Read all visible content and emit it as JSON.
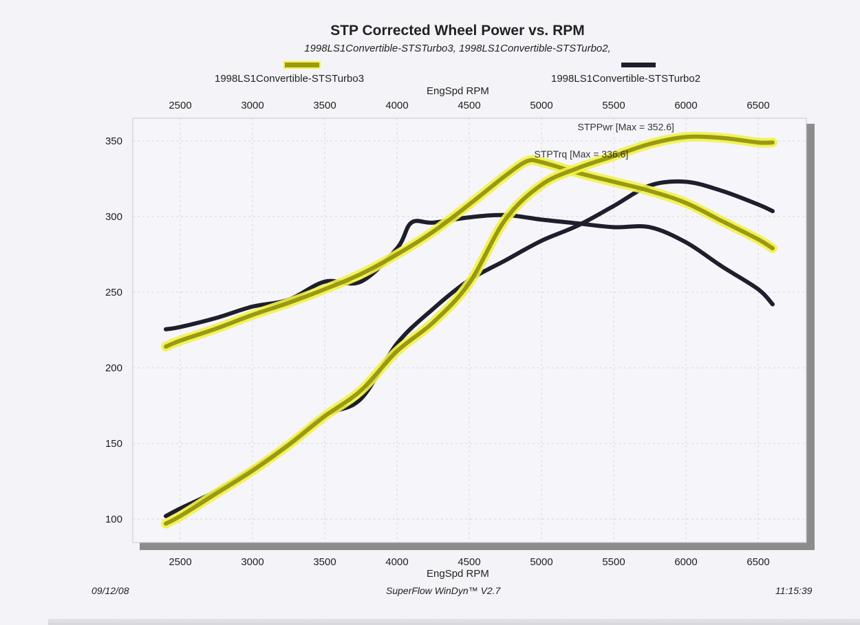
{
  "chart_data": {
    "type": "line",
    "title": "STP Corrected Wheel Power vs. RPM",
    "subtitle": "1998LS1Convertible-STSTurbo3, 1998LS1Convertible-STSTurbo2,",
    "xlabel": "EngSpd  RPM",
    "ylabel": "",
    "xlim": [
      2400,
      6700
    ],
    "ylim": [
      93,
      363
    ],
    "x_ticks": [
      "2500",
      "3000",
      "3500",
      "4000",
      "4500",
      "5000",
      "5500",
      "6000",
      "6500"
    ],
    "x_tick_values": [
      2500,
      3000,
      3500,
      4000,
      4500,
      5000,
      5500,
      6000,
      6500
    ],
    "y_ticks": [
      "100",
      "150",
      "200",
      "250",
      "300",
      "350"
    ],
    "y_tick_values": [
      100,
      150,
      200,
      250,
      300,
      350
    ],
    "grid": true,
    "legend_placement": "top",
    "legend": [
      {
        "name": "1998LS1Convertible-STSTurbo3",
        "color": "#9a9a10",
        "highlight": "#f2f24a"
      },
      {
        "name": "1998LS1Convertible-STSTurbo2",
        "color": "#1e1e2c"
      }
    ],
    "annotations": [
      {
        "text": "STPPwr [Max = 352.6]",
        "x": 5250,
        "y": 357
      },
      {
        "text": "STPTrq [Max = 336.6]",
        "x": 4950,
        "y": 339
      }
    ],
    "series": [
      {
        "name": "Turbo3 STPTrq",
        "run": "1998LS1Convertible-STSTurbo3",
        "color": "#9a9a10",
        "highlight": "#f2f24a",
        "x": [
          2400,
          2500,
          2750,
          3000,
          3250,
          3500,
          3750,
          4000,
          4250,
          4500,
          4750,
          4900,
          5000,
          5250,
          5500,
          5750,
          6000,
          6250,
          6500,
          6600
        ],
        "values": [
          214,
          218,
          226,
          235,
          243,
          252,
          262,
          275,
          290,
          308,
          327,
          336.6,
          336,
          329,
          323,
          317,
          309,
          297,
          285,
          279
        ]
      },
      {
        "name": "Turbo3 STPPwr",
        "run": "1998LS1Convertible-STSTurbo3",
        "color": "#9a9a10",
        "highlight": "#f2f24a",
        "x": [
          2400,
          2500,
          2750,
          3000,
          3250,
          3500,
          3750,
          4000,
          4250,
          4500,
          4750,
          5000,
          5250,
          5500,
          5750,
          6000,
          6250,
          6500,
          6600
        ],
        "values": [
          97,
          102,
          117,
          132,
          149,
          168,
          185,
          211,
          230,
          256,
          298,
          321,
          332,
          340,
          348,
          352.6,
          352,
          349,
          349
        ]
      },
      {
        "name": "Turbo2 STPTrq",
        "run": "1998LS1Convertible-STSTurbo2",
        "color": "#1e1e2c",
        "x": [
          2400,
          2500,
          2750,
          3000,
          3250,
          3500,
          3750,
          4000,
          4100,
          4250,
          4500,
          4750,
          5000,
          5250,
          5500,
          5750,
          6000,
          6250,
          6500,
          6600
        ],
        "values": [
          225.5,
          227,
          233,
          240.5,
          245,
          257,
          257,
          279,
          296,
          296,
          299.5,
          301,
          298,
          295.5,
          293,
          293,
          283,
          267,
          252,
          242
        ]
      },
      {
        "name": "Turbo2 STPPwr",
        "run": "1998LS1Convertible-STSTurbo2",
        "color": "#1e1e2c",
        "x": [
          2400,
          2500,
          2750,
          3000,
          3250,
          3500,
          3750,
          4000,
          4250,
          4500,
          4750,
          5000,
          5250,
          5500,
          5750,
          6000,
          6250,
          6500,
          6600
        ],
        "values": [
          102,
          107,
          118.5,
          133,
          149.5,
          168.5,
          179.5,
          216,
          239,
          258,
          271,
          284,
          294,
          307,
          320.5,
          323,
          317,
          308,
          303.6
        ]
      }
    ]
  },
  "footer": {
    "date": "09/12/08",
    "software": "SuperFlow WinDyn™ V2.7",
    "time": "11:15:39"
  }
}
